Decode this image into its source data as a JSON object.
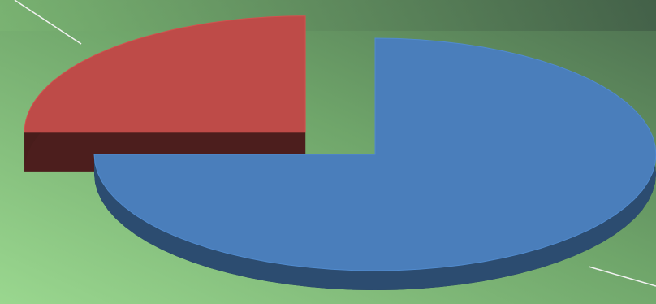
{
  "chart_data": {
    "type": "pie",
    "values": [
      75,
      25
    ],
    "colors": [
      "#4a7ebb",
      "#be4b48"
    ]
  }
}
